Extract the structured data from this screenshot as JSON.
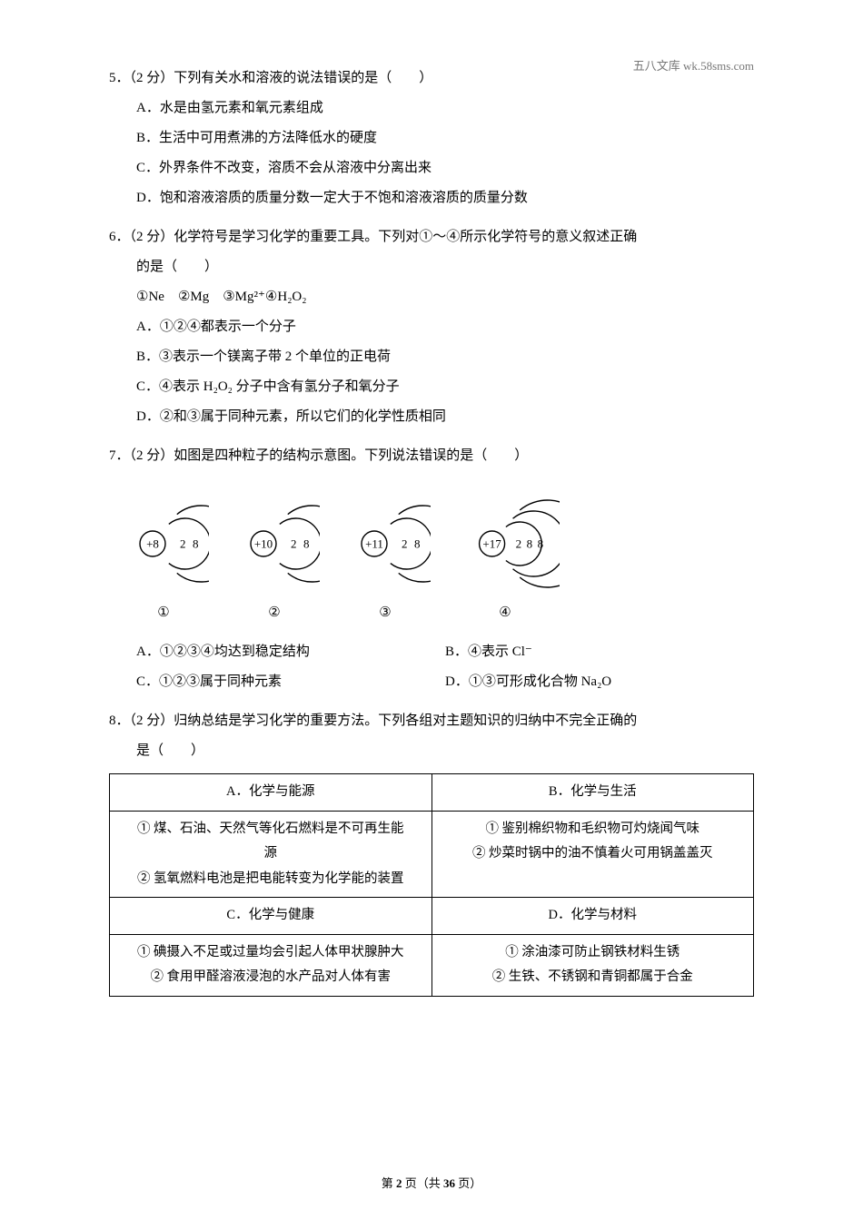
{
  "watermark": "五八文库 wk.58sms.com",
  "q5": {
    "stem": "5．（2 分）下列有关水和溶液的说法错误的是（　　）",
    "A": "A．水是由氢元素和氧元素组成",
    "B": "B．生活中可用煮沸的方法降低水的硬度",
    "C": "C．外界条件不改变，溶质不会从溶液中分离出来",
    "D": "D．饱和溶液溶质的质量分数一定大于不饱和溶液溶质的质量分数"
  },
  "q6": {
    "stem1": "6．（2 分）化学符号是学习化学的重要工具。下列对①～④所示化学符号的意义叙述正确",
    "stem2": "的是（　　）",
    "given": "①Ne　②Mg　③Mg²⁺④H₂O₂",
    "A": "A．①②④都表示一个分子",
    "B": "B．③表示一个镁离子带 2 个单位的正电荷",
    "C": "C．④表示 H₂O₂ 分子中含有氢分子和氧分子",
    "D": "D．②和③属于同种元素，所以它们的化学性质相同"
  },
  "q7": {
    "stem": "7．（2 分）如图是四种粒子的结构示意图。下列说法错误的是（　　）",
    "atoms": {
      "a1": {
        "nucleus": "+8",
        "shells": [
          "2",
          "8"
        ],
        "label": "①"
      },
      "a2": {
        "nucleus": "+10",
        "shells": [
          "2",
          "8"
        ],
        "label": "②"
      },
      "a3": {
        "nucleus": "+11",
        "shells": [
          "2",
          "8"
        ],
        "label": "③"
      },
      "a4": {
        "nucleus": "+17",
        "shells": [
          "2",
          "8",
          "8"
        ],
        "label": "④"
      }
    },
    "A": "A．①②③④均达到稳定结构",
    "B": "B．④表示 Cl⁻",
    "C": "C．①②③属于同种元素",
    "D": "D．①③可形成化合物 Na₂O"
  },
  "q8": {
    "stem1": "8．（2 分）归纳总结是学习化学的重要方法。下列各组对主题知识的归纳中不完全正确的",
    "stem2": "是（　　）",
    "table": {
      "A_head": "A．化学与能源",
      "B_head": "B．化学与生活",
      "A_body": [
        "① 煤、石油、天然气等化石燃料是不可再生能",
        "源",
        "② 氢氧燃料电池是把电能转变为化学能的装置"
      ],
      "B_body": [
        "① 鉴别棉织物和毛织物可灼烧闻气味",
        "② 炒菜时锅中的油不慎着火可用锅盖盖灭"
      ],
      "C_head": "C．化学与健康",
      "D_head": "D．化学与材料",
      "C_body": [
        "① 碘摄入不足或过量均会引起人体甲状腺肿大",
        "② 食用甲醛溶液浸泡的水产品对人体有害"
      ],
      "D_body": [
        "① 涂油漆可防止钢铁材料生锈",
        "② 生铁、不锈钢和青铜都属于合金"
      ]
    }
  },
  "footer": {
    "pre": "第 ",
    "cur": "2",
    "mid": " 页（共 ",
    "total": "36",
    "post": " 页）"
  },
  "svg": {
    "stroke": "#000000",
    "strokeWidth": 1.4,
    "shellRadii2": [
      28,
      42
    ],
    "shellRadii3": [
      24,
      36,
      48
    ],
    "nucleusR": 14,
    "arcFraction": 0.72,
    "fontSize": 13,
    "shellFontSize": 13
  }
}
